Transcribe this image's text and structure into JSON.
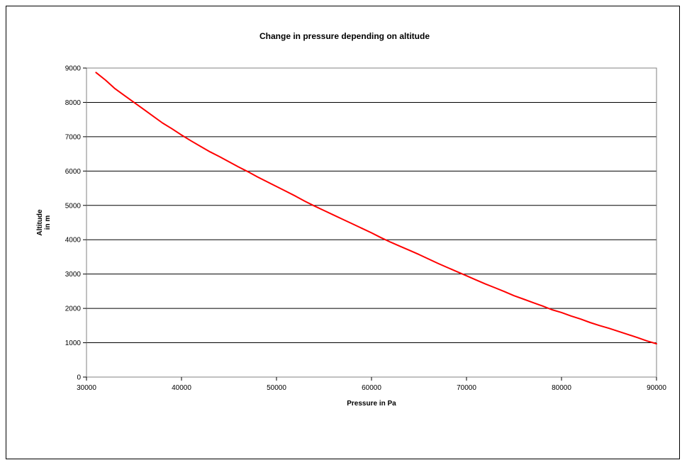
{
  "chart_data": {
    "type": "line",
    "title": "Change in pressure depending on altitude",
    "xlabel": "Pressure in Pa",
    "ylabel_lines": [
      "Altitude",
      "in m"
    ],
    "xlim": [
      30000,
      90000
    ],
    "ylim": [
      0,
      9000
    ],
    "x_ticks": [
      "30000",
      "40000",
      "50000",
      "60000",
      "70000",
      "80000",
      "90000"
    ],
    "y_ticks": [
      "0",
      "1000",
      "2000",
      "3000",
      "4000",
      "5000",
      "6000",
      "7000",
      "8000",
      "9000"
    ],
    "grid": "horizontal",
    "legend": "none",
    "series": [
      {
        "color": "#ff0000",
        "points": [
          [
            31000,
            8870
          ],
          [
            32000,
            8650
          ],
          [
            33000,
            8400
          ],
          [
            34000,
            8200
          ],
          [
            35000,
            8000
          ],
          [
            36000,
            7800
          ],
          [
            37000,
            7600
          ],
          [
            38000,
            7400
          ],
          [
            39000,
            7230
          ],
          [
            40000,
            7050
          ],
          [
            41000,
            6880
          ],
          [
            42000,
            6720
          ],
          [
            43000,
            6560
          ],
          [
            44000,
            6420
          ],
          [
            45000,
            6270
          ],
          [
            46000,
            6120
          ],
          [
            47000,
            5980
          ],
          [
            48000,
            5830
          ],
          [
            49000,
            5690
          ],
          [
            50000,
            5550
          ],
          [
            51000,
            5410
          ],
          [
            52000,
            5270
          ],
          [
            53000,
            5120
          ],
          [
            54000,
            4980
          ],
          [
            55000,
            4850
          ],
          [
            56000,
            4720
          ],
          [
            57000,
            4590
          ],
          [
            58000,
            4460
          ],
          [
            59000,
            4330
          ],
          [
            60000,
            4200
          ],
          [
            61000,
            4060
          ],
          [
            62000,
            3930
          ],
          [
            63000,
            3810
          ],
          [
            64000,
            3690
          ],
          [
            65000,
            3570
          ],
          [
            66000,
            3440
          ],
          [
            67000,
            3310
          ],
          [
            68000,
            3190
          ],
          [
            69000,
            3070
          ],
          [
            70000,
            2950
          ],
          [
            71000,
            2830
          ],
          [
            72000,
            2710
          ],
          [
            73000,
            2600
          ],
          [
            74000,
            2490
          ],
          [
            75000,
            2370
          ],
          [
            76000,
            2270
          ],
          [
            77000,
            2170
          ],
          [
            78000,
            2070
          ],
          [
            79000,
            1960
          ],
          [
            80000,
            1880
          ],
          [
            81000,
            1780
          ],
          [
            82000,
            1690
          ],
          [
            83000,
            1590
          ],
          [
            84000,
            1500
          ],
          [
            85000,
            1420
          ],
          [
            86000,
            1330
          ],
          [
            87000,
            1240
          ],
          [
            88000,
            1150
          ],
          [
            89000,
            1050
          ],
          [
            90000,
            970
          ]
        ]
      }
    ]
  }
}
